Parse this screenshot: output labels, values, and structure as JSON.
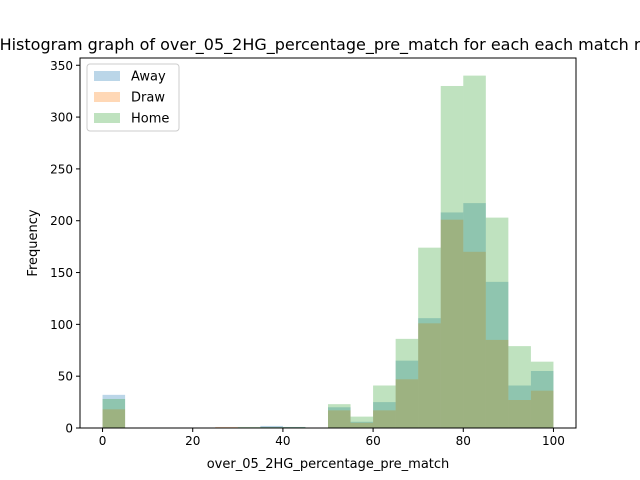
{
  "chart_data": {
    "type": "bar",
    "subtype": "overlapping-histogram",
    "title": "Histogram graph of over_05_2HG_percentage_pre_match for each each match r",
    "xlabel": "over_05_2HG_percentage_pre_match",
    "ylabel": "Frequency",
    "xlim": [
      -5,
      105
    ],
    "ylim": [
      0,
      357
    ],
    "xticks": [
      0,
      20,
      40,
      60,
      80,
      100
    ],
    "yticks": [
      0,
      50,
      100,
      150,
      200,
      250,
      300,
      350
    ],
    "bin_width": 5,
    "bin_edges": [
      0,
      5,
      10,
      15,
      20,
      25,
      30,
      35,
      40,
      45,
      50,
      55,
      60,
      65,
      70,
      75,
      80,
      85,
      90,
      95,
      100
    ],
    "legend_position": "top-left",
    "series": [
      {
        "name": "Away",
        "color": "#1f77b4",
        "values": [
          32,
          0,
          0,
          0,
          0,
          0,
          0,
          2,
          1,
          0,
          20,
          6,
          25,
          65,
          106,
          208,
          217,
          141,
          41,
          55
        ]
      },
      {
        "name": "Draw",
        "color": "#ff7f0e",
        "values": [
          18,
          0,
          0,
          0,
          0,
          1,
          0,
          0,
          0,
          0,
          17,
          5,
          17,
          47,
          101,
          201,
          170,
          85,
          27,
          36
        ]
      },
      {
        "name": "Home",
        "color": "#2ca02c",
        "values": [
          28,
          0,
          0,
          0,
          0,
          0,
          1,
          1,
          1,
          0,
          23,
          11,
          41,
          86,
          174,
          330,
          340,
          203,
          79,
          64
        ]
      }
    ]
  }
}
